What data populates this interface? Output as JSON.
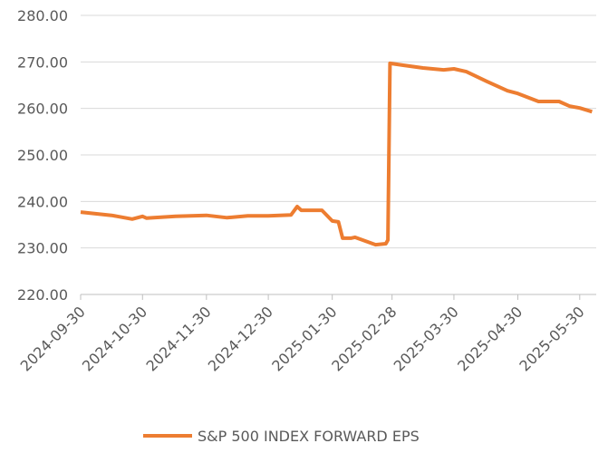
{
  "chart_data": {
    "type": "line",
    "x": [
      "2024-09-30",
      "2024-10-15",
      "2024-10-25",
      "2024-10-30",
      "2024-11-01",
      "2024-11-15",
      "2024-11-30",
      "2024-12-10",
      "2024-12-20",
      "2024-12-30",
      "2025-01-10",
      "2025-01-13",
      "2025-01-15",
      "2025-01-25",
      "2025-01-30",
      "2025-02-02",
      "2025-02-04",
      "2025-02-08",
      "2025-02-10",
      "2025-02-20",
      "2025-02-25",
      "2025-02-26",
      "2025-02-27",
      "2025-03-05",
      "2025-03-15",
      "2025-03-25",
      "2025-03-30",
      "2025-04-05",
      "2025-04-15",
      "2025-04-25",
      "2025-04-30",
      "2025-05-10",
      "2025-05-20",
      "2025-05-25",
      "2025-05-30",
      "2025-06-05"
    ],
    "series": [
      {
        "name": "S&P 500 INDEX FORWARD EPS",
        "color": "#ed7d31",
        "values": [
          237.7,
          237.0,
          236.2,
          236.8,
          236.4,
          236.8,
          237.0,
          236.5,
          236.9,
          236.9,
          237.1,
          238.9,
          238.1,
          238.1,
          235.8,
          235.6,
          232.1,
          232.1,
          232.3,
          230.7,
          230.9,
          231.7,
          269.7,
          269.3,
          268.7,
          268.3,
          268.5,
          267.9,
          265.8,
          263.8,
          263.2,
          261.5,
          261.5,
          260.5,
          260.1,
          259.3
        ]
      }
    ],
    "xlim": [
      "2024-09-30",
      "2025-06-07"
    ],
    "xticks": [
      "2024-09-30",
      "2024-10-30",
      "2024-11-30",
      "2024-12-30",
      "2025-01-30",
      "2025-02-28",
      "2025-03-30",
      "2025-04-30",
      "2025-05-30"
    ],
    "ylim": [
      220,
      280
    ],
    "yticks": [
      {
        "value": 220,
        "label": "220.00"
      },
      {
        "value": 230,
        "label": "230.00"
      },
      {
        "value": 240,
        "label": "240.00"
      },
      {
        "value": 250,
        "label": "250.00"
      },
      {
        "value": 260,
        "label": "260.00"
      },
      {
        "value": 270,
        "label": "270.00"
      },
      {
        "value": 280,
        "label": "280.00"
      }
    ],
    "grid": true,
    "legend": "bottom"
  }
}
